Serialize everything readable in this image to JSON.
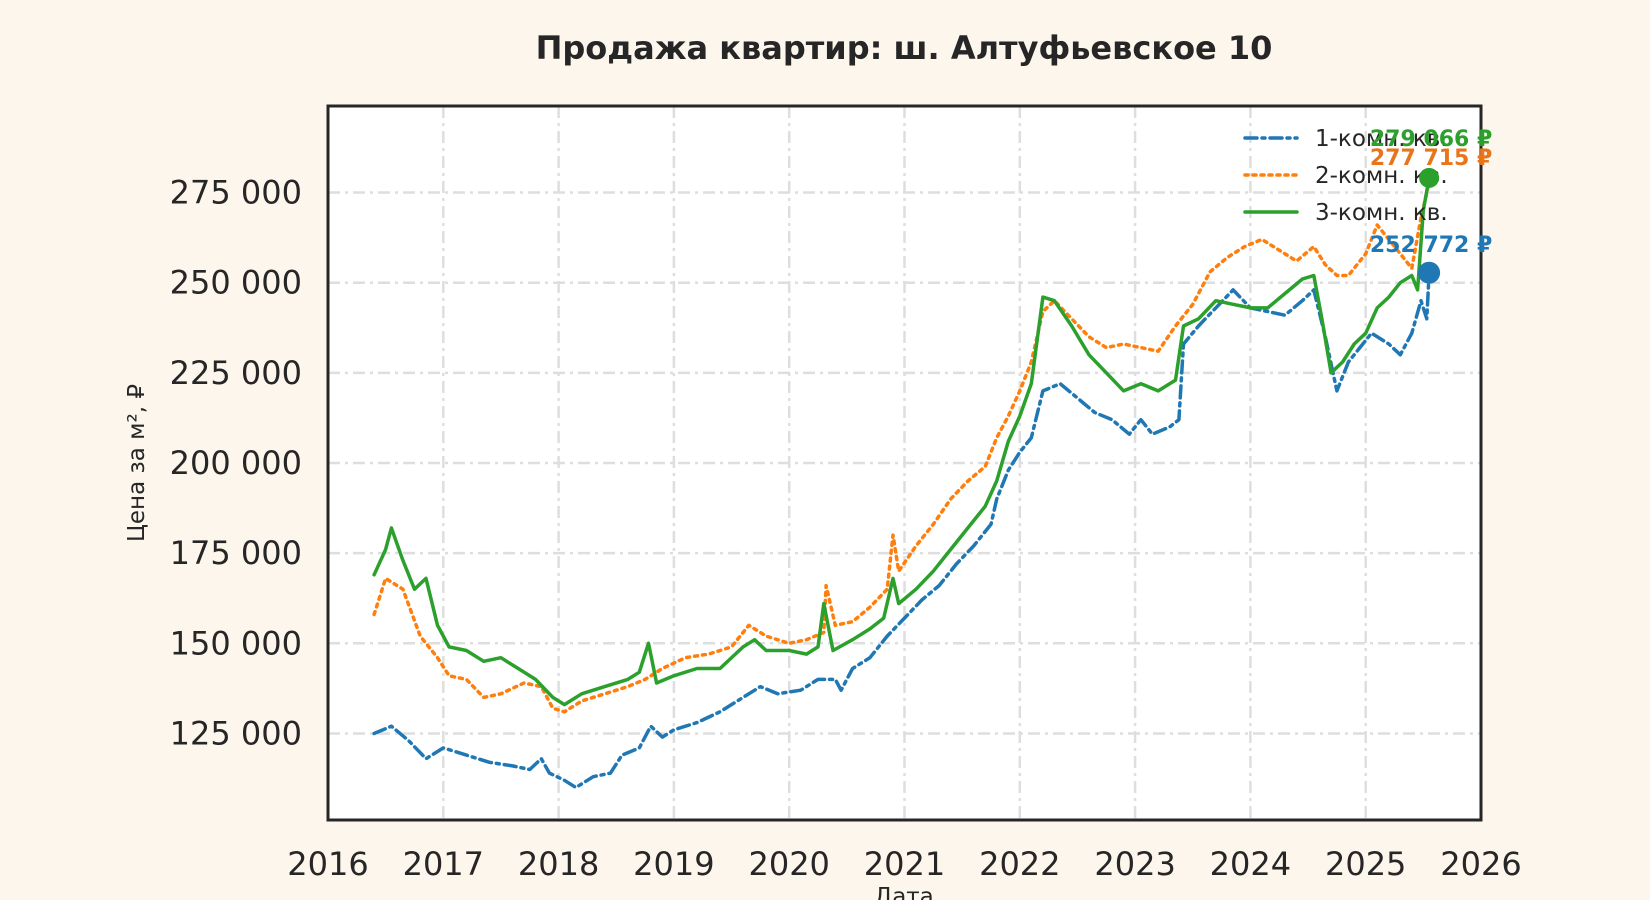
{
  "chart_data": {
    "type": "line",
    "title": "Продажа квартир: ш. Алтуфьевское 10",
    "xlabel": "Дата",
    "ylabel": "Цена за м², ₽",
    "xlim": [
      2016,
      2026
    ],
    "ylim": [
      101000,
      299000
    ],
    "x_ticks": [
      "2016",
      "2017",
      "2018",
      "2019",
      "2020",
      "2021",
      "2022",
      "2023",
      "2024",
      "2025",
      "2026"
    ],
    "y_ticks": [
      {
        "value": 125000,
        "label": "125 000"
      },
      {
        "value": 150000,
        "label": "150 000"
      },
      {
        "value": 175000,
        "label": "175 000"
      },
      {
        "value": 200000,
        "label": "200 000"
      },
      {
        "value": 225000,
        "label": "225 000"
      },
      {
        "value": 250000,
        "label": "250 000"
      },
      {
        "value": 275000,
        "label": "275 000"
      }
    ],
    "grid": true,
    "legend_position": "top-right",
    "series": [
      {
        "name": "1-комн. кв.",
        "color": "#1f77b4",
        "dash": "dashdot",
        "points": [
          [
            2016.4,
            125000
          ],
          [
            2016.55,
            127000
          ],
          [
            2016.7,
            123000
          ],
          [
            2016.85,
            118000
          ],
          [
            2017.0,
            121000
          ],
          [
            2017.2,
            119000
          ],
          [
            2017.4,
            117000
          ],
          [
            2017.6,
            116000
          ],
          [
            2017.75,
            115000
          ],
          [
            2017.85,
            118000
          ],
          [
            2017.92,
            114000
          ],
          [
            2018.05,
            112000
          ],
          [
            2018.15,
            110000
          ],
          [
            2018.3,
            113000
          ],
          [
            2018.45,
            114000
          ],
          [
            2018.55,
            119000
          ],
          [
            2018.7,
            121000
          ],
          [
            2018.8,
            127000
          ],
          [
            2018.9,
            124000
          ],
          [
            2019.0,
            126000
          ],
          [
            2019.2,
            128000
          ],
          [
            2019.4,
            131000
          ],
          [
            2019.6,
            135000
          ],
          [
            2019.75,
            138000
          ],
          [
            2019.9,
            136000
          ],
          [
            2020.1,
            137000
          ],
          [
            2020.25,
            140000
          ],
          [
            2020.4,
            140000
          ],
          [
            2020.45,
            137000
          ],
          [
            2020.55,
            143000
          ],
          [
            2020.7,
            146000
          ],
          [
            2020.85,
            152000
          ],
          [
            2021.0,
            157000
          ],
          [
            2021.15,
            162000
          ],
          [
            2021.3,
            166000
          ],
          [
            2021.45,
            172000
          ],
          [
            2021.6,
            177000
          ],
          [
            2021.75,
            183000
          ],
          [
            2021.8,
            190000
          ],
          [
            2021.9,
            198000
          ],
          [
            2022.0,
            203000
          ],
          [
            2022.1,
            207000
          ],
          [
            2022.2,
            220000
          ],
          [
            2022.35,
            222000
          ],
          [
            2022.5,
            218000
          ],
          [
            2022.65,
            214000
          ],
          [
            2022.8,
            212000
          ],
          [
            2022.95,
            208000
          ],
          [
            2023.05,
            212000
          ],
          [
            2023.15,
            208000
          ],
          [
            2023.3,
            210000
          ],
          [
            2023.38,
            212000
          ],
          [
            2023.42,
            233000
          ],
          [
            2023.55,
            238000
          ],
          [
            2023.7,
            243000
          ],
          [
            2023.85,
            248000
          ],
          [
            2024.0,
            243000
          ],
          [
            2024.15,
            242000
          ],
          [
            2024.3,
            241000
          ],
          [
            2024.45,
            245000
          ],
          [
            2024.55,
            248000
          ],
          [
            2024.65,
            235000
          ],
          [
            2024.75,
            220000
          ],
          [
            2024.85,
            228000
          ],
          [
            2024.95,
            232000
          ],
          [
            2025.05,
            236000
          ],
          [
            2025.2,
            233000
          ],
          [
            2025.3,
            230000
          ],
          [
            2025.4,
            236000
          ],
          [
            2025.48,
            245000
          ],
          [
            2025.53,
            240000
          ],
          [
            2025.55,
            252772
          ]
        ]
      },
      {
        "name": "2-комн. кв.",
        "color": "#ff7f0e",
        "dash": "dotted",
        "points": [
          [
            2016.4,
            158000
          ],
          [
            2016.5,
            168000
          ],
          [
            2016.65,
            165000
          ],
          [
            2016.8,
            152000
          ],
          [
            2016.95,
            146000
          ],
          [
            2017.05,
            141000
          ],
          [
            2017.2,
            140000
          ],
          [
            2017.35,
            135000
          ],
          [
            2017.5,
            136000
          ],
          [
            2017.7,
            139000
          ],
          [
            2017.85,
            138000
          ],
          [
            2017.95,
            132000
          ],
          [
            2018.05,
            131000
          ],
          [
            2018.2,
            134000
          ],
          [
            2018.4,
            136000
          ],
          [
            2018.6,
            138000
          ],
          [
            2018.75,
            140000
          ],
          [
            2018.9,
            143000
          ],
          [
            2019.1,
            146000
          ],
          [
            2019.3,
            147000
          ],
          [
            2019.5,
            149000
          ],
          [
            2019.65,
            155000
          ],
          [
            2019.8,
            152000
          ],
          [
            2020.0,
            150000
          ],
          [
            2020.15,
            151000
          ],
          [
            2020.3,
            153000
          ],
          [
            2020.32,
            166000
          ],
          [
            2020.4,
            155000
          ],
          [
            2020.55,
            156000
          ],
          [
            2020.7,
            160000
          ],
          [
            2020.85,
            165000
          ],
          [
            2020.9,
            180000
          ],
          [
            2020.95,
            170000
          ],
          [
            2021.1,
            177000
          ],
          [
            2021.25,
            183000
          ],
          [
            2021.4,
            190000
          ],
          [
            2021.55,
            195000
          ],
          [
            2021.7,
            199000
          ],
          [
            2021.8,
            207000
          ],
          [
            2021.9,
            213000
          ],
          [
            2022.0,
            220000
          ],
          [
            2022.1,
            228000
          ],
          [
            2022.2,
            242000
          ],
          [
            2022.3,
            245000
          ],
          [
            2022.45,
            240000
          ],
          [
            2022.6,
            235000
          ],
          [
            2022.75,
            232000
          ],
          [
            2022.9,
            233000
          ],
          [
            2023.05,
            232000
          ],
          [
            2023.2,
            231000
          ],
          [
            2023.35,
            238000
          ],
          [
            2023.5,
            244000
          ],
          [
            2023.65,
            253000
          ],
          [
            2023.8,
            257000
          ],
          [
            2023.95,
            260000
          ],
          [
            2024.1,
            262000
          ],
          [
            2024.25,
            259000
          ],
          [
            2024.4,
            256000
          ],
          [
            2024.55,
            260000
          ],
          [
            2024.65,
            255000
          ],
          [
            2024.75,
            252000
          ],
          [
            2024.85,
            252000
          ],
          [
            2025.0,
            258000
          ],
          [
            2025.1,
            266000
          ],
          [
            2025.2,
            262000
          ],
          [
            2025.3,
            258000
          ],
          [
            2025.4,
            254000
          ],
          [
            2025.48,
            268000
          ],
          [
            2025.55,
            277715
          ]
        ]
      },
      {
        "name": "3-комн. кв.",
        "color": "#2ca02c",
        "dash": "solid",
        "points": [
          [
            2016.4,
            169000
          ],
          [
            2016.5,
            176000
          ],
          [
            2016.55,
            182000
          ],
          [
            2016.65,
            173000
          ],
          [
            2016.75,
            165000
          ],
          [
            2016.85,
            168000
          ],
          [
            2016.95,
            155000
          ],
          [
            2017.05,
            149000
          ],
          [
            2017.2,
            148000
          ],
          [
            2017.35,
            145000
          ],
          [
            2017.5,
            146000
          ],
          [
            2017.65,
            143000
          ],
          [
            2017.8,
            140000
          ],
          [
            2017.95,
            135000
          ],
          [
            2018.05,
            133000
          ],
          [
            2018.2,
            136000
          ],
          [
            2018.4,
            138000
          ],
          [
            2018.6,
            140000
          ],
          [
            2018.7,
            142000
          ],
          [
            2018.78,
            150000
          ],
          [
            2018.85,
            139000
          ],
          [
            2019.0,
            141000
          ],
          [
            2019.2,
            143000
          ],
          [
            2019.4,
            143000
          ],
          [
            2019.6,
            149000
          ],
          [
            2019.7,
            151000
          ],
          [
            2019.8,
            148000
          ],
          [
            2020.0,
            148000
          ],
          [
            2020.15,
            147000
          ],
          [
            2020.25,
            149000
          ],
          [
            2020.3,
            161000
          ],
          [
            2020.38,
            148000
          ],
          [
            2020.55,
            151000
          ],
          [
            2020.7,
            154000
          ],
          [
            2020.82,
            157000
          ],
          [
            2020.9,
            168000
          ],
          [
            2020.95,
            161000
          ],
          [
            2021.1,
            165000
          ],
          [
            2021.25,
            170000
          ],
          [
            2021.4,
            176000
          ],
          [
            2021.55,
            182000
          ],
          [
            2021.7,
            188000
          ],
          [
            2021.8,
            195000
          ],
          [
            2021.9,
            206000
          ],
          [
            2022.0,
            213000
          ],
          [
            2022.1,
            222000
          ],
          [
            2022.2,
            246000
          ],
          [
            2022.3,
            245000
          ],
          [
            2022.45,
            238000
          ],
          [
            2022.6,
            230000
          ],
          [
            2022.75,
            225000
          ],
          [
            2022.9,
            220000
          ],
          [
            2023.05,
            222000
          ],
          [
            2023.2,
            220000
          ],
          [
            2023.35,
            223000
          ],
          [
            2023.42,
            238000
          ],
          [
            2023.55,
            240000
          ],
          [
            2023.7,
            245000
          ],
          [
            2023.85,
            244000
          ],
          [
            2024.0,
            243000
          ],
          [
            2024.15,
            243000
          ],
          [
            2024.3,
            247000
          ],
          [
            2024.45,
            251000
          ],
          [
            2024.55,
            252000
          ],
          [
            2024.62,
            240000
          ],
          [
            2024.7,
            225000
          ],
          [
            2024.8,
            228000
          ],
          [
            2024.9,
            233000
          ],
          [
            2025.0,
            236000
          ],
          [
            2025.1,
            243000
          ],
          [
            2025.2,
            246000
          ],
          [
            2025.3,
            250000
          ],
          [
            2025.4,
            252000
          ],
          [
            2025.45,
            248000
          ],
          [
            2025.5,
            270000
          ],
          [
            2025.55,
            279066
          ]
        ]
      }
    ],
    "end_labels": [
      {
        "series": "3-комн. кв.",
        "label": "279 066 ₽",
        "color": "#2ca02c"
      },
      {
        "series": "2-комн. кв.",
        "label": "277 715 ₽",
        "color": "#e8751a"
      },
      {
        "series": "1-комн. кв.",
        "label": "252 772 ₽",
        "color": "#1f77b4"
      }
    ]
  }
}
